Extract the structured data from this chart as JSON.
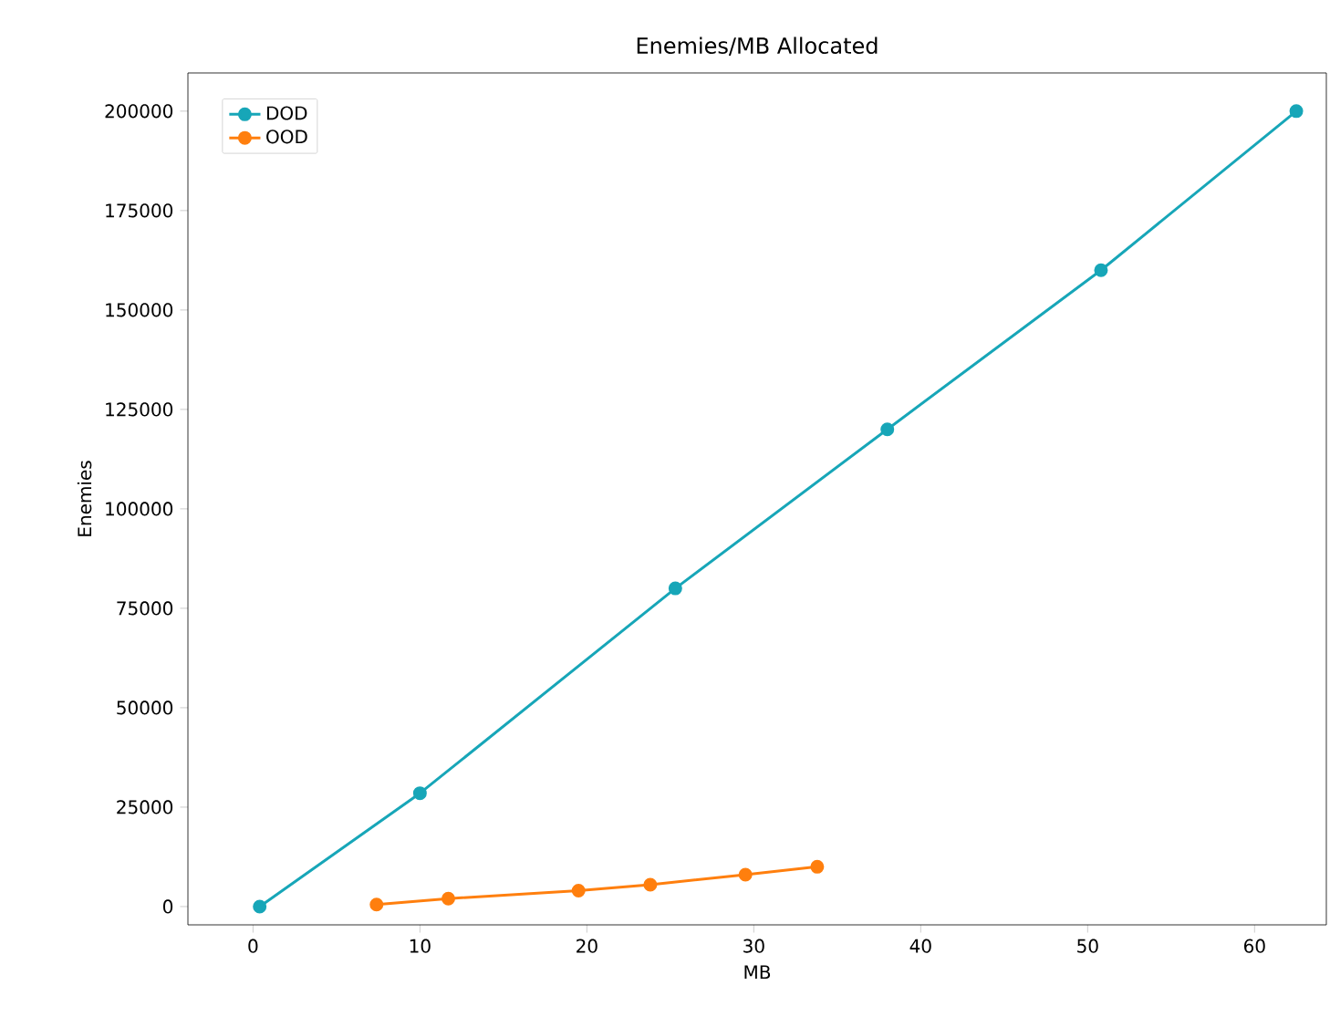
{
  "chart_data": {
    "type": "line",
    "title": "Enemies/MB Allocated",
    "xlabel": "MB",
    "ylabel": "Enemies",
    "xlim": [
      -3.9,
      64.3
    ],
    "ylim": [
      -4600,
      209600
    ],
    "xticks": [
      0,
      10,
      20,
      30,
      40,
      50,
      60
    ],
    "yticks": [
      0,
      25000,
      50000,
      75000,
      100000,
      125000,
      150000,
      175000,
      200000
    ],
    "legend": "top left",
    "marker": "circle",
    "grid": false,
    "series": [
      {
        "name": "DOD",
        "color": "#17a6b8",
        "x": [
          0.4,
          10,
          25.3,
          38,
          50.8,
          62.5
        ],
        "values": [
          0,
          28500,
          80000,
          120000,
          160000,
          200000
        ]
      },
      {
        "name": "OOD",
        "color": "#ff7f0e",
        "x": [
          7.4,
          11.7,
          19.5,
          23.8,
          29.5,
          33.8
        ],
        "values": [
          500,
          2000,
          4000,
          5500,
          8000,
          10000
        ]
      }
    ]
  }
}
